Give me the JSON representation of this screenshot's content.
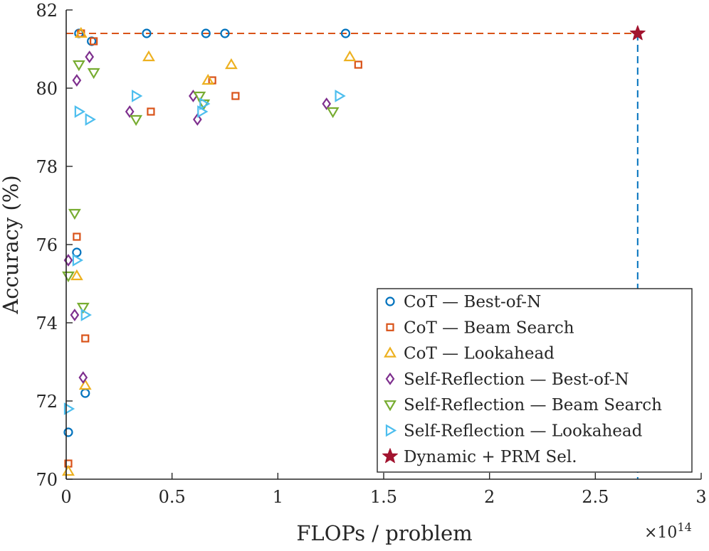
{
  "chart_data": {
    "type": "scatter",
    "title": "",
    "xlabel": "FLOPs / problem",
    "ylabel": "Accuracy (%)",
    "x_exponent_label": "×10",
    "x_exponent_value": "14",
    "xlim": [
      0,
      3
    ],
    "ylim": [
      70,
      82
    ],
    "xticks": [
      0,
      0.5,
      1,
      1.5,
      2,
      2.5,
      3
    ],
    "yticks": [
      70,
      72,
      74,
      76,
      78,
      80,
      82
    ],
    "xtick_labels": [
      "0",
      "0.5",
      "1",
      "1.5",
      "2",
      "2.5",
      "3"
    ],
    "ytick_labels": [
      "70",
      "72",
      "74",
      "76",
      "78",
      "80",
      "82"
    ],
    "grid": false,
    "legend_position": "bottom-right",
    "reference_lines": {
      "horizontal_y": 81.4,
      "vertical_x": 2.7
    },
    "series": [
      {
        "name": "CoT — Best-of-N",
        "method": "CoT",
        "strategy": "Best-of-N",
        "marker": "circle",
        "color": "#0072BD",
        "points": [
          [
            0.01,
            71.2
          ],
          [
            0.05,
            75.8
          ],
          [
            0.09,
            72.2
          ],
          [
            0.06,
            81.4
          ],
          [
            0.12,
            81.2
          ],
          [
            0.38,
            81.4
          ],
          [
            0.66,
            81.4
          ],
          [
            0.75,
            81.4
          ],
          [
            1.32,
            81.4
          ]
        ]
      },
      {
        "name": "CoT — Beam Search",
        "method": "CoT",
        "strategy": "Beam Search",
        "marker": "square",
        "color": "#D95319",
        "points": [
          [
            0.01,
            70.4
          ],
          [
            0.05,
            76.2
          ],
          [
            0.09,
            73.6
          ],
          [
            0.07,
            81.4
          ],
          [
            0.13,
            81.2
          ],
          [
            0.4,
            79.4
          ],
          [
            0.69,
            80.2
          ],
          [
            0.8,
            79.8
          ],
          [
            1.38,
            80.6
          ]
        ]
      },
      {
        "name": "CoT — Lookahead",
        "method": "CoT",
        "strategy": "Lookahead",
        "marker": "triangle-up",
        "color": "#EDB120",
        "points": [
          [
            0.01,
            70.2
          ],
          [
            0.05,
            75.2
          ],
          [
            0.09,
            72.4
          ],
          [
            0.07,
            81.4
          ],
          [
            0.39,
            80.8
          ],
          [
            0.67,
            80.2
          ],
          [
            0.78,
            80.6
          ],
          [
            1.34,
            80.8
          ]
        ]
      },
      {
        "name": "Self-Reflection — Best-of-N",
        "method": "Self-Reflection",
        "strategy": "Best-of-N",
        "marker": "diamond",
        "color": "#7E2F8E",
        "points": [
          [
            0.01,
            75.6
          ],
          [
            0.04,
            74.2
          ],
          [
            0.08,
            72.6
          ],
          [
            0.05,
            80.2
          ],
          [
            0.11,
            80.8
          ],
          [
            0.3,
            79.4
          ],
          [
            0.6,
            79.8
          ],
          [
            0.62,
            79.2
          ],
          [
            1.23,
            79.6
          ]
        ]
      },
      {
        "name": "Self-Reflection — Beam Search",
        "method": "Self-Reflection",
        "strategy": "Beam Search",
        "marker": "triangle-down",
        "color": "#77AC30",
        "points": [
          [
            0.01,
            75.2
          ],
          [
            0.04,
            76.8
          ],
          [
            0.08,
            74.4
          ],
          [
            0.06,
            80.6
          ],
          [
            0.13,
            80.4
          ],
          [
            0.33,
            79.2
          ],
          [
            0.63,
            79.8
          ],
          [
            0.65,
            79.6
          ],
          [
            1.26,
            79.4
          ]
        ]
      },
      {
        "name": "Self-Reflection — Lookahead",
        "method": "Self-Reflection",
        "strategy": "Lookahead",
        "marker": "triangle-right",
        "color": "#4DBEEE",
        "points": [
          [
            0.01,
            71.8
          ],
          [
            0.05,
            75.6
          ],
          [
            0.09,
            74.2
          ],
          [
            0.06,
            79.4
          ],
          [
            0.11,
            79.2
          ],
          [
            0.33,
            79.8
          ],
          [
            0.64,
            79.4
          ],
          [
            0.65,
            79.6
          ],
          [
            1.29,
            79.8
          ]
        ]
      },
      {
        "name": "Dynamic + PRM Sel.",
        "method": "Dynamic",
        "strategy": "PRM Sel.",
        "marker": "star",
        "color": "#A2142F",
        "points": [
          [
            2.7,
            81.4
          ]
        ]
      }
    ],
    "legend": [
      {
        "method": "CoT",
        "sep": "—",
        "strategy": "Best-of-N"
      },
      {
        "method": "CoT",
        "sep": "—",
        "strategy": "Beam Search"
      },
      {
        "method": "CoT",
        "sep": "—",
        "strategy": "Lookahead"
      },
      {
        "method": "Self-Reflection",
        "sep": "—",
        "strategy": "Best-of-N"
      },
      {
        "method": "Self-Reflection",
        "sep": "—",
        "strategy": "Beam Search"
      },
      {
        "method": "Self-Reflection",
        "sep": "—",
        "strategy": "Lookahead"
      },
      {
        "method": "Dynamic + PRM Sel.",
        "sep": "",
        "strategy": ""
      }
    ]
  }
}
